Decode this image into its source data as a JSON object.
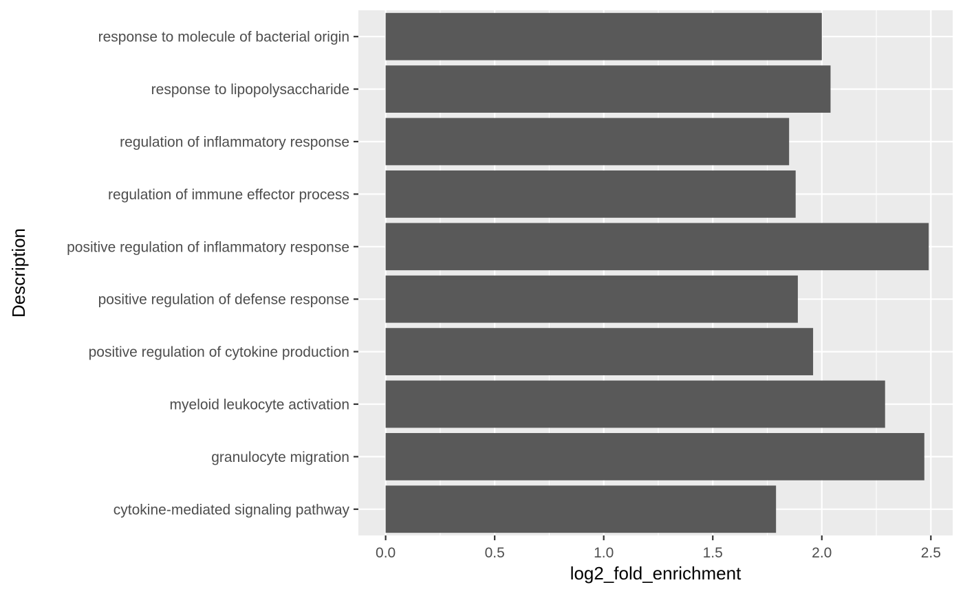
{
  "chart_data": {
    "type": "bar",
    "orientation": "horizontal",
    "categories": [
      "response to molecule of bacterial origin",
      "response to lipopolysaccharide",
      "regulation of inflammatory response",
      "regulation of immune effector process",
      "positive regulation of inflammatory response",
      "positive regulation of defense response",
      "positive regulation of cytokine production",
      "myeloid leukocyte activation",
      "granulocyte migration",
      "cytokine-mediated signaling pathway"
    ],
    "values": [
      2.0,
      2.04,
      1.85,
      1.88,
      2.49,
      1.89,
      1.96,
      2.29,
      2.47,
      1.79
    ],
    "xlabel": "log2_fold_enrichment",
    "ylabel": "Description",
    "xlim": [
      -0.125,
      2.6
    ],
    "xticks": [
      "0.0",
      "0.5",
      "1.0",
      "1.5",
      "2.0",
      "2.5"
    ],
    "grid": true,
    "legend": "none",
    "colors": {
      "bar": "#595959",
      "panel_background": "#ebebeb",
      "grid": "#ffffff",
      "tick_text": "#4d4d4d",
      "tick_mark": "#333333"
    }
  }
}
